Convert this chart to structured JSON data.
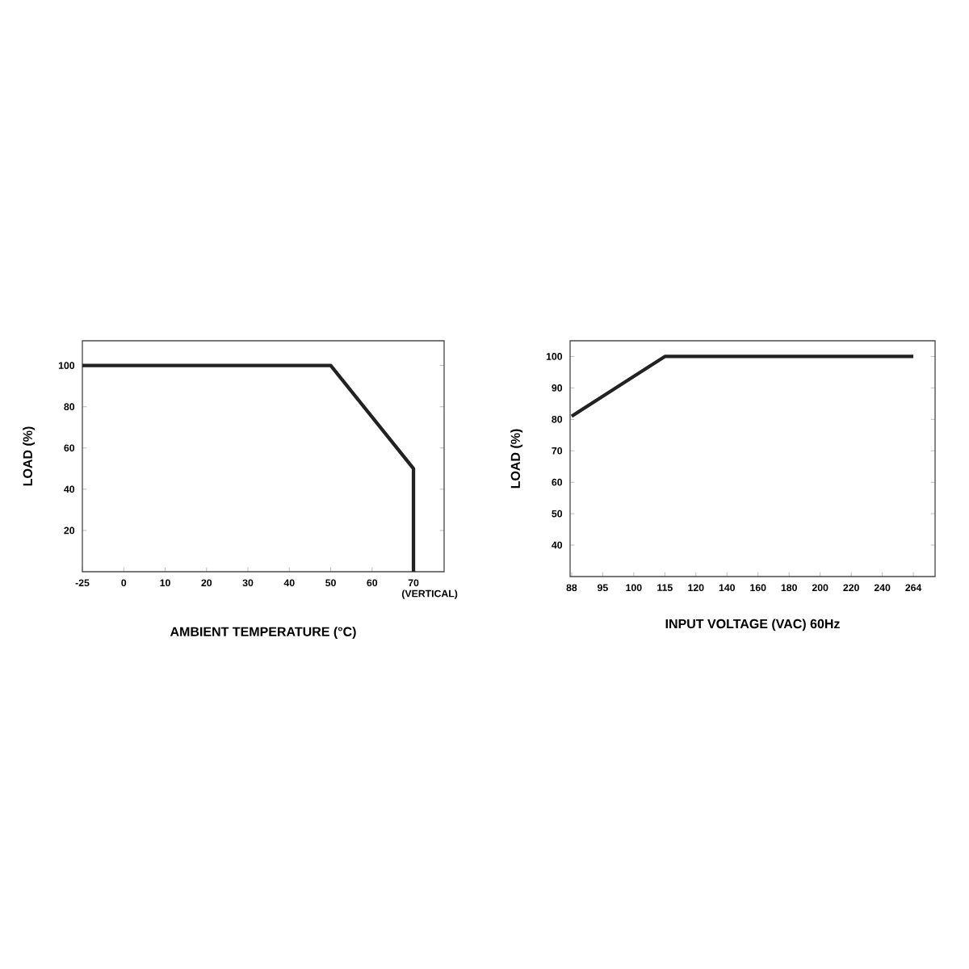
{
  "chart_data": [
    {
      "type": "line",
      "xlabel": "AMBIENT TEMPERATURE (°C)",
      "ylabel": "LOAD (%)",
      "categories": [
        "-25",
        "0",
        "10",
        "20",
        "30",
        "40",
        "50",
        "60",
        "70 (VERTICAL)"
      ],
      "series": [
        {
          "color": "#222222",
          "x": [
            "-25",
            "50",
            "70 (VERTICAL)",
            "70 (VERTICAL)"
          ],
          "values": [
            100,
            100,
            50,
            0
          ]
        }
      ],
      "ylim": [
        0,
        112
      ],
      "yticks": [
        20,
        40,
        60,
        80,
        100
      ]
    },
    {
      "type": "line",
      "xlabel": "INPUT VOLTAGE (VAC) 60Hz",
      "ylabel": "LOAD (%)",
      "categories": [
        "88",
        "95",
        "100",
        "115",
        "120",
        "140",
        "160",
        "180",
        "200",
        "220",
        "240",
        "264"
      ],
      "series": [
        {
          "color": "#222222",
          "x": [
            "88",
            "115",
            "264"
          ],
          "values": [
            81,
            100,
            100
          ]
        }
      ],
      "ylim": [
        30,
        105
      ],
      "yticks": [
        40,
        50,
        60,
        70,
        80,
        90,
        100
      ]
    }
  ]
}
